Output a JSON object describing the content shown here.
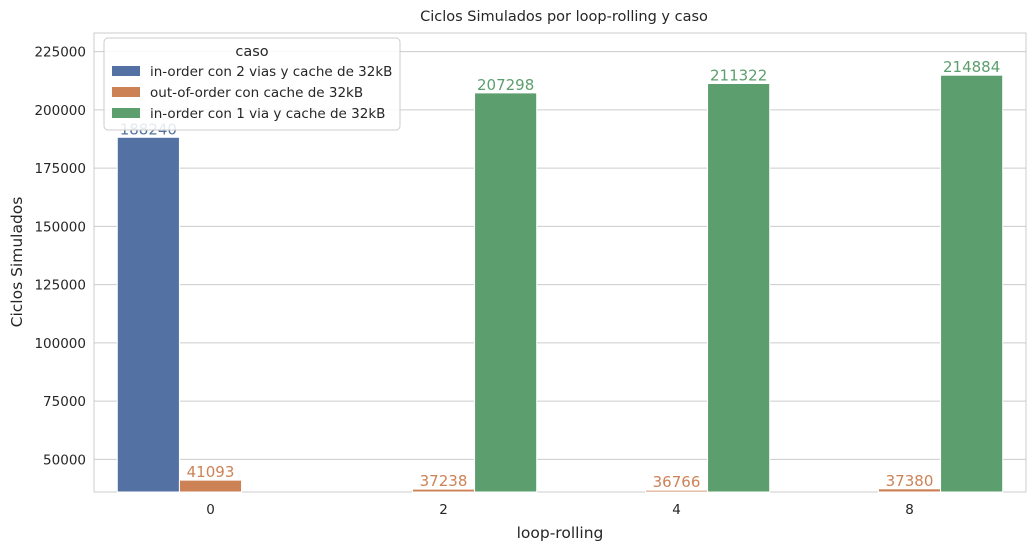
{
  "chart_data": {
    "type": "bar",
    "title": "Ciclos Simulados por loop-rolling y caso",
    "xlabel": "loop-rolling",
    "ylabel": "Ciclos Simulados",
    "categories": [
      "0",
      "2",
      "4",
      "8"
    ],
    "ylim": [
      36000,
      233000
    ],
    "yticks": [
      50000,
      75000,
      100000,
      125000,
      150000,
      175000,
      200000,
      225000
    ],
    "grid": "horizontal",
    "legend": {
      "title": "caso",
      "placement": "top-left"
    },
    "series": [
      {
        "name": "in-order con 2 vias y cache de 32kB",
        "color": "#5471a3",
        "values": [
          188240,
          null,
          null,
          null
        ],
        "labels": [
          "188240",
          "",
          "",
          ""
        ]
      },
      {
        "name": "out-of-order con cache de 32kB",
        "color": "#cd8256",
        "values": [
          41093,
          37238,
          36766,
          37380
        ],
        "labels": [
          "41093",
          "37238",
          "36766",
          "37380"
        ]
      },
      {
        "name": "in-order con 1 via y cache de 32kB",
        "color": "#5c9e6d",
        "values": [
          null,
          207298,
          211322,
          214884
        ],
        "labels": [
          "",
          "207298",
          "211322",
          "214884"
        ]
      }
    ]
  }
}
